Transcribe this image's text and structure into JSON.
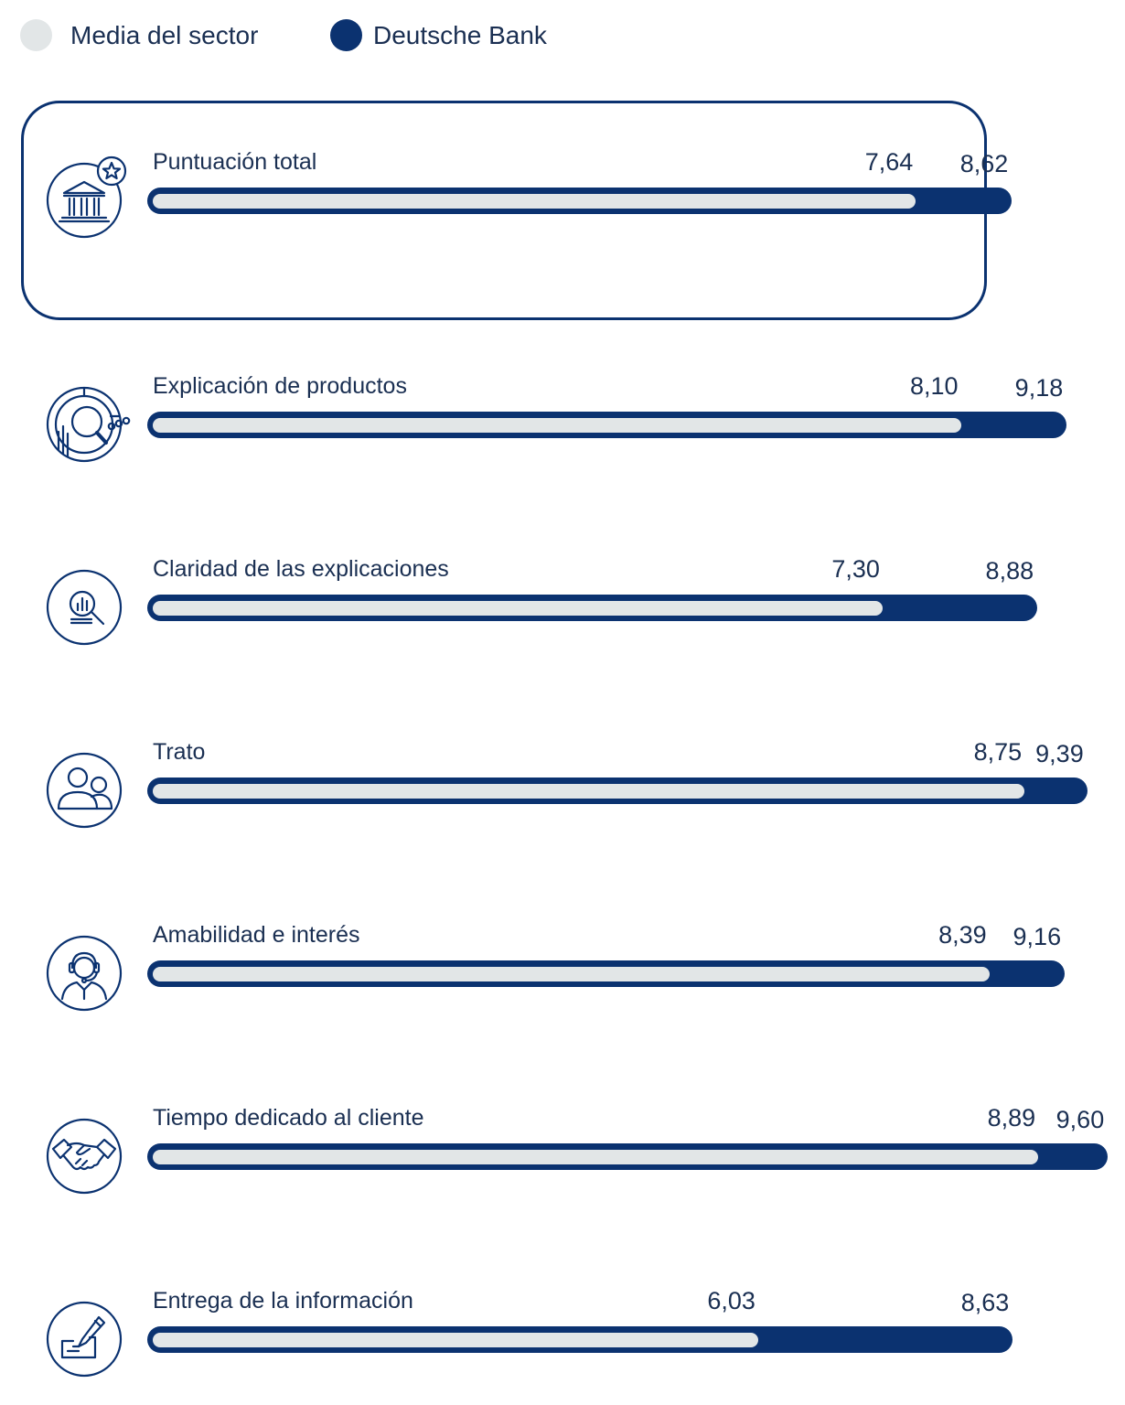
{
  "legend": [
    {
      "label": "Media del sector",
      "color": "#e2e6e7"
    },
    {
      "label": "Deutsche Bank",
      "color": "#0b3270"
    }
  ],
  "chart_data": {
    "type": "bar",
    "orientation": "horizontal",
    "categories": [
      "Puntuación total",
      "Explicación de productos",
      "Claridad de las explicaciones",
      "Trato",
      "Amabilidad e interés",
      "Tiempo dedicado al cliente",
      "Entrega de la información"
    ],
    "series": [
      {
        "name": "Media del sector",
        "values": [
          7.64,
          8.1,
          7.3,
          8.75,
          8.39,
          8.89,
          6.03
        ],
        "labels": [
          "7,64",
          "8,10",
          "7,30",
          "8,75",
          "8,39",
          "8,89",
          "6,03"
        ],
        "color": "#e2e6e7"
      },
      {
        "name": "Deutsche Bank",
        "values": [
          8.62,
          9.18,
          8.88,
          9.39,
          9.16,
          9.6,
          8.63
        ],
        "labels": [
          "8,62",
          "9,18",
          "8,88",
          "9,39",
          "9,16",
          "9,60",
          "8,63"
        ],
        "color": "#0b3270"
      }
    ],
    "icons": [
      "bank-star-icon",
      "magnifier-chart-icon",
      "magnifier-bars-icon",
      "people-icon",
      "headset-agent-icon",
      "handshake-icon",
      "pen-document-icon"
    ],
    "highlighted_category": "Puntuación total",
    "grid": false,
    "legend_position": "top-left"
  }
}
